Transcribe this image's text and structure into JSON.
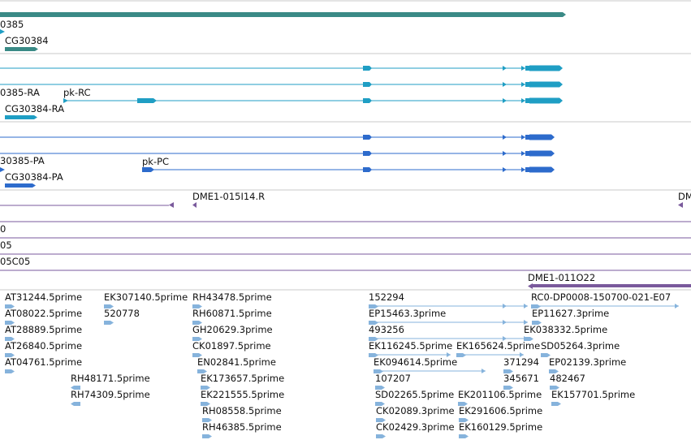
{
  "colors": {
    "gene": "#3a8a86",
    "mrna": "#1f9ec4",
    "cds": "#2d6bcc",
    "clone": "#7a5a9c",
    "est": "#86b3dc",
    "separator": "#c8c8c8"
  },
  "tracks": {
    "genes": {
      "labels": [
        "0385",
        "CG30384"
      ]
    },
    "transcripts": {
      "labels": [
        "0385-RA",
        "pk-RC",
        "CG30384-RA"
      ]
    },
    "proteins": {
      "labels": [
        "30385-PA",
        "pk-PC",
        "CG30384-PA"
      ]
    },
    "clones": {
      "labels": [
        "DME1-015I14.R",
        "DM",
        "0",
        "05",
        "05C05",
        "DME1-011O22"
      ]
    },
    "ests": {
      "labels": [
        "AT31244.5prime",
        "EK307140.5prime",
        "RH43478.5prime",
        "152294",
        "RC0-DP0008-150700-021-E07",
        "AT08022.5prime",
        "520778",
        "RH60871.5prime",
        "EP15463.3prime",
        "EP11627.3prime",
        "AT28889.5prime",
        "GH20629.3prime",
        "493256",
        "EK038332.5prime",
        "AT26840.5prime",
        "CK01897.5prime",
        "EK116245.5prime",
        "EK165624.5prime",
        "SD05264.3prime",
        "AT04761.5prime",
        "EN02841.5prime",
        "EK094614.5prime",
        "371294",
        "EP02139.3prime",
        "RH48171.5prime",
        "EK173657.5prime",
        "107207",
        "345671",
        "482467",
        "RH74309.5prime",
        "EK221555.5prime",
        "SD02265.5prime",
        "EK201106.5prime",
        "EK157701.5prime",
        "RH08558.5prime",
        "CK02089.3prime",
        "EK291606.5prime",
        "RH46385.5prime",
        "CK02429.3prime",
        "EK160129.5prime"
      ]
    }
  }
}
